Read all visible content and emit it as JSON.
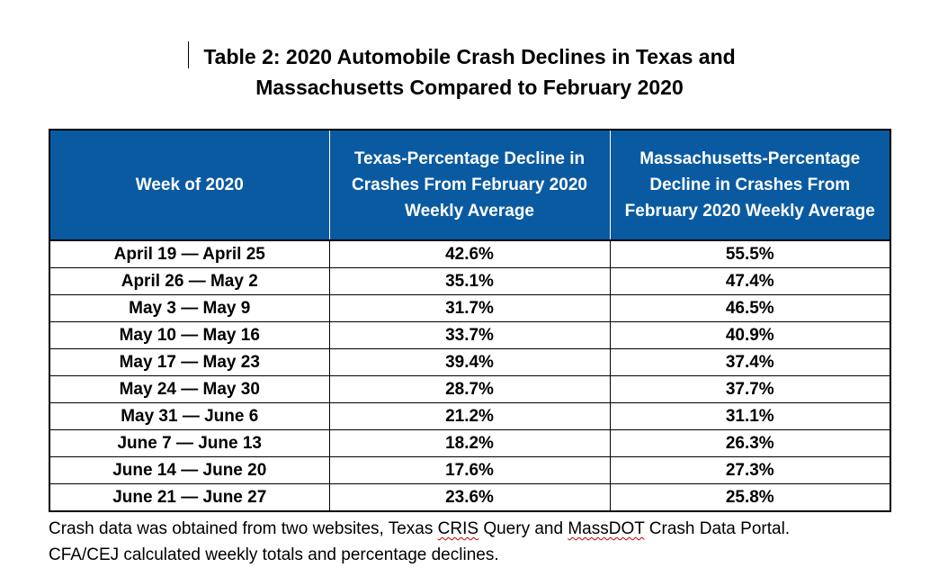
{
  "title": {
    "line1": "Table 2: 2020 Automobile Crash Declines in Texas and",
    "line2": "Massachusetts Compared to February 2020"
  },
  "table": {
    "headers": [
      "Week of 2020",
      "Texas-Percentage Decline in Crashes From February 2020 Weekly Average",
      "Massachusetts-Percentage Decline in Crashes From February 2020 Weekly Average"
    ],
    "rows": [
      [
        "April 19 — April 25",
        "42.6%",
        "55.5%"
      ],
      [
        "April 26 — May 2",
        "35.1%",
        "47.4%"
      ],
      [
        "May 3 — May 9",
        "31.7%",
        "46.5%"
      ],
      [
        "May 10 — May 16",
        "33.7%",
        "40.9%"
      ],
      [
        "May 17 — May 23",
        "39.4%",
        "37.4%"
      ],
      [
        "May 24 — May 30",
        "28.7%",
        "37.7%"
      ],
      [
        "May 31 — June 6",
        "21.2%",
        "31.1%"
      ],
      [
        "June 7 — June 13",
        "18.2%",
        "26.3%"
      ],
      [
        "June 14 — June 20",
        "17.6%",
        "27.3%"
      ],
      [
        "June 21 — June 27",
        "23.6%",
        "25.8%"
      ]
    ]
  },
  "footnote": {
    "part1": "Crash data was obtained from two websites, Texas ",
    "cris": "CRIS",
    "part2": " Query and ",
    "massdot": "MassDOT",
    "part3": " Crash Data Portal.",
    "line2": "CFA/CEJ calculated weekly totals and percentage declines."
  },
  "colors": {
    "header_background": "#0a5aa1",
    "header_text": "#ffffff",
    "spellcheck_underline": "#c00000"
  }
}
